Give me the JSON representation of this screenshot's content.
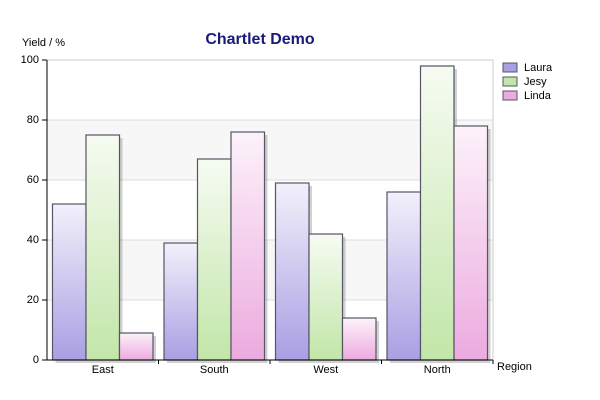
{
  "chart_data": {
    "type": "bar",
    "title": "Chartlet Demo",
    "y_label": "Yield / %",
    "x_label": "Region",
    "categories": [
      "East",
      "South",
      "West",
      "North"
    ],
    "series": [
      {
        "name": "Laura",
        "color": "#a99fe3",
        "values": [
          52,
          39,
          59,
          56
        ]
      },
      {
        "name": "Jesy",
        "color": "#c2e6a8",
        "values": [
          75,
          67,
          42,
          98
        ]
      },
      {
        "name": "Linda",
        "color": "#ecaadf",
        "values": [
          9,
          76,
          14,
          78
        ]
      }
    ],
    "ylim": [
      0,
      100
    ],
    "yticks": [
      0,
      20,
      40,
      60,
      80,
      100
    ],
    "grid": true,
    "legend": "top-right"
  }
}
